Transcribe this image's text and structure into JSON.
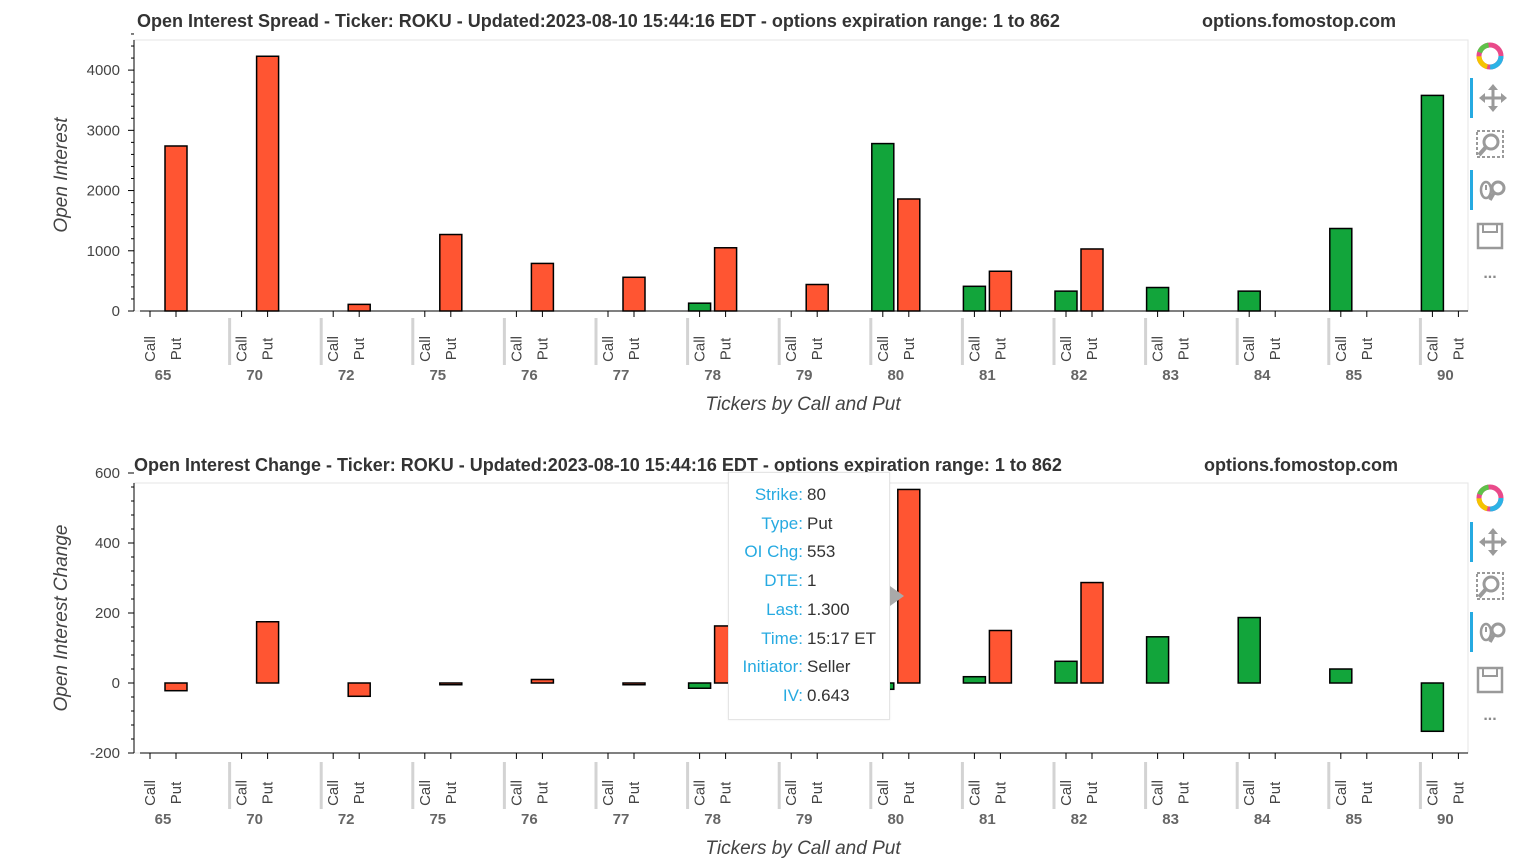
{
  "colors": {
    "call": "#12a53b",
    "put": "#ff5532",
    "grid": "#e5e5e5",
    "separator": "#d3d3d3",
    "accent": "#26aae1"
  },
  "groups": [
    "65",
    "70",
    "72",
    "75",
    "76",
    "77",
    "78",
    "79",
    "80",
    "81",
    "82",
    "83",
    "84",
    "85",
    "90"
  ],
  "factors": [
    "Call",
    "Put"
  ],
  "chart_data": [
    {
      "type": "bar",
      "title": "Open Interest Spread - Ticker: ROKU - Updated:2023-08-10 15:44:16 EDT - options expiration range: 1 to 862",
      "watermark": "options.fomostop.com",
      "xlabel": "Tickers by Call and Put",
      "ylabel": "Open Interest",
      "yticks": [
        "0",
        "1000",
        "2000",
        "3000",
        "4000"
      ],
      "ylim": [
        0,
        4500
      ],
      "categories": [
        "65",
        "70",
        "72",
        "75",
        "76",
        "77",
        "78",
        "79",
        "80",
        "81",
        "82",
        "83",
        "84",
        "85",
        "90"
      ],
      "series": [
        {
          "name": "Call",
          "values": [
            0,
            0,
            0,
            0,
            0,
            0,
            130,
            0,
            2780,
            410,
            330,
            390,
            330,
            1370,
            3580
          ]
        },
        {
          "name": "Put",
          "values": [
            2740,
            4230,
            110,
            1270,
            790,
            560,
            1050,
            440,
            1860,
            660,
            1030,
            0,
            0,
            0,
            0
          ]
        }
      ]
    },
    {
      "type": "bar",
      "title": "Open Interest Change - Ticker: ROKU - Updated:2023-08-10 15:44:16 EDT - options expiration range: 1 to 862",
      "watermark": "options.fomostop.com",
      "xlabel": "Tickers by Call and Put",
      "ylabel": "Open Interest Change",
      "yticks": [
        "-200",
        "0",
        "200",
        "400",
        "600"
      ],
      "ylim": [
        -200,
        600
      ],
      "categories": [
        "65",
        "70",
        "72",
        "75",
        "76",
        "77",
        "78",
        "79",
        "80",
        "81",
        "82",
        "83",
        "84",
        "85",
        "90"
      ],
      "series": [
        {
          "name": "Call",
          "values": [
            0,
            0,
            0,
            0,
            0,
            0,
            -15,
            0,
            -18,
            18,
            62,
            132,
            187,
            40,
            -138
          ]
        },
        {
          "name": "Put",
          "values": [
            -22,
            175,
            -38,
            -5,
            10,
            -5,
            163,
            195,
            553,
            150,
            287,
            0,
            0,
            0,
            0
          ]
        }
      ]
    }
  ],
  "tooltip": {
    "rows": [
      {
        "key": "Strike:",
        "value": "80"
      },
      {
        "key": "Type:",
        "value": "Put"
      },
      {
        "key": "OI Chg:",
        "value": "553"
      },
      {
        "key": "DTE:",
        "value": "1"
      },
      {
        "key": "Last:",
        "value": "1.300"
      },
      {
        "key": "Time:",
        "value": "15:17 ET"
      },
      {
        "key": "Initiator:",
        "value": "Seller"
      },
      {
        "key": "IV:",
        "value": "0.643"
      }
    ]
  },
  "toolbar": {
    "items": [
      {
        "icon": "bokeh-logo-icon"
      },
      {
        "icon": "pan-icon",
        "active": true
      },
      {
        "icon": "box-zoom-icon",
        "active": false
      },
      {
        "icon": "wheel-zoom-icon",
        "active": true
      },
      {
        "icon": "save-icon",
        "active": false
      },
      {
        "icon": "more-icon",
        "label": "..."
      }
    ]
  }
}
